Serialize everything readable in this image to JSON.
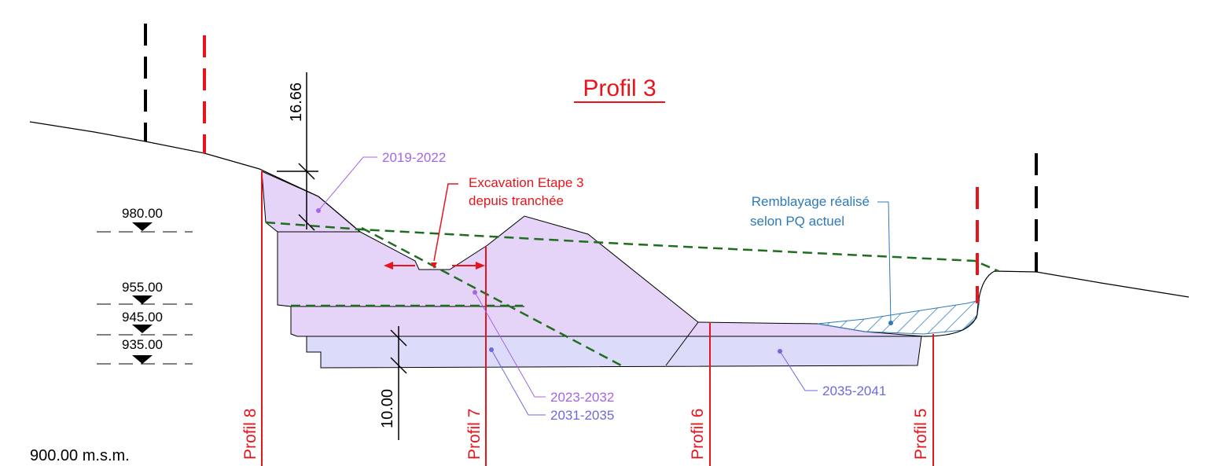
{
  "title": "Profil 3",
  "dimensions": [
    "16.66",
    "10.00"
  ],
  "elevations": [
    "980.00",
    "955.00",
    "945.00",
    "935.00"
  ],
  "base_label": "900.00 m.s.m.",
  "profiles": [
    "Profil 8",
    "Profil 7",
    "Profil 6",
    "Profil 5"
  ],
  "annotations": {
    "stage_2019": "2019-2022",
    "excavation": [
      "Excavation Etape 3",
      "depuis tranchée"
    ],
    "backfill": [
      "Remblayage réalisé",
      "selon PQ actuel"
    ],
    "stage_2023": "2023-2032",
    "stage_2031": "2031-2035",
    "stage_2035": "2035-2041"
  }
}
